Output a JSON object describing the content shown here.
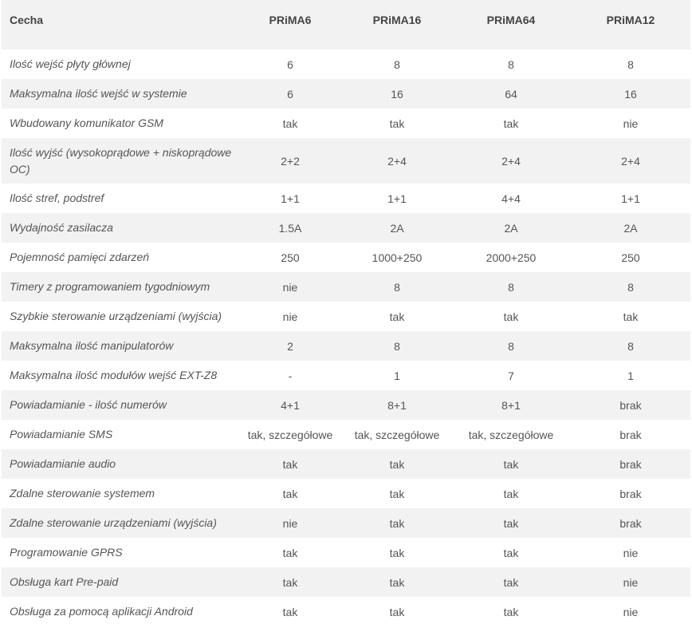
{
  "table": {
    "headers": [
      "Cecha",
      "PRiMA6",
      "PRiMA16",
      "PRiMA64",
      "PRiMA12"
    ],
    "rows": [
      [
        "Ilość wejść płyty głównej",
        "6",
        "8",
        "8",
        "8"
      ],
      [
        "Maksymalna ilość wejść w systemie",
        "6",
        "16",
        "64",
        "16"
      ],
      [
        "Wbudowany komunikator GSM",
        "tak",
        "tak",
        "tak",
        "nie"
      ],
      [
        "Ilość wyjść (wysokoprądowe + niskoprądowe OC)",
        "2+2",
        "2+4",
        "2+4",
        "2+4"
      ],
      [
        "Ilość stref, podstref",
        "1+1",
        "1+1",
        "4+4",
        "1+1"
      ],
      [
        "Wydajność zasilacza",
        "1.5A",
        "2A",
        "2A",
        "2A"
      ],
      [
        "Pojemność pamięci zdarzeń",
        "250",
        "1000+250",
        "2000+250",
        "250"
      ],
      [
        "Timery z programowaniem tygodniowym",
        "nie",
        "8",
        "8",
        "8"
      ],
      [
        "Szybkie sterowanie urządzeniami (wyjścia)",
        "nie",
        "tak",
        "tak",
        "tak"
      ],
      [
        "Maksymalna ilość manipulatorów",
        "2",
        "8",
        "8",
        "8"
      ],
      [
        "Maksymalna ilość modułów wejść EXT-Z8",
        "-",
        "1",
        "7",
        "1"
      ],
      [
        "Powiadamianie - ilość numerów",
        "4+1",
        "8+1",
        "8+1",
        "brak"
      ],
      [
        "Powiadamianie SMS",
        "tak, szczegółowe",
        "tak, szczegółowe",
        "tak, szczegółowe",
        "brak"
      ],
      [
        "Powiadamianie audio",
        "tak",
        "tak",
        "tak",
        "brak"
      ],
      [
        "Zdalne sterowanie systemem",
        "tak",
        "tak",
        "tak",
        "brak"
      ],
      [
        "Zdalne sterowanie urządzeniami (wyjścia)",
        "nie",
        "tak",
        "tak",
        "brak"
      ],
      [
        "Programowanie GPRS",
        "tak",
        "tak",
        "tak",
        "nie"
      ],
      [
        "Obsługa kart Pre-paid",
        "tak",
        "tak",
        "tak",
        "nie"
      ],
      [
        "Obsługa za pomocą aplikacji Android",
        "tak",
        "tak",
        "tak",
        "nie"
      ]
    ]
  }
}
